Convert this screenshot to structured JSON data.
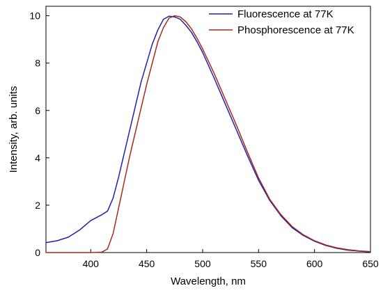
{
  "chart_data": {
    "type": "line",
    "title": "",
    "xlabel": "Wavelength, nm",
    "ylabel": "Intensity, arb. units",
    "xlim": [
      360,
      650
    ],
    "ylim": [
      0,
      10.4
    ],
    "x_ticks": [
      400,
      450,
      500,
      550,
      600,
      650
    ],
    "y_ticks": [
      0,
      2,
      4,
      6,
      8,
      10
    ],
    "grid": false,
    "legend_position": "top-right",
    "series": [
      {
        "name": "Fluorescence at 77K",
        "color": "#1f1fb4",
        "x": [
          360,
          370,
          380,
          390,
          400,
          410,
          415,
          420,
          425,
          430,
          435,
          440,
          445,
          450,
          455,
          460,
          465,
          470,
          475,
          480,
          485,
          490,
          495,
          500,
          510,
          520,
          530,
          540,
          550,
          560,
          570,
          580,
          590,
          600,
          610,
          620,
          630,
          640,
          650
        ],
        "y": [
          0.42,
          0.5,
          0.65,
          0.95,
          1.35,
          1.6,
          1.75,
          2.3,
          3.2,
          4.2,
          5.2,
          6.2,
          7.2,
          8.0,
          8.8,
          9.4,
          9.85,
          9.98,
          9.95,
          9.85,
          9.6,
          9.3,
          8.9,
          8.45,
          7.4,
          6.3,
          5.2,
          4.1,
          3.05,
          2.2,
          1.55,
          1.05,
          0.72,
          0.48,
          0.3,
          0.18,
          0.1,
          0.06,
          0.03
        ]
      },
      {
        "name": "Phosphorescence at 77K",
        "color": "#a52a1a",
        "x": [
          360,
          380,
          400,
          410,
          415,
          420,
          425,
          430,
          435,
          440,
          445,
          450,
          455,
          460,
          465,
          470,
          475,
          480,
          485,
          490,
          495,
          500,
          510,
          520,
          530,
          540,
          550,
          560,
          570,
          580,
          590,
          600,
          610,
          620,
          630,
          640,
          650
        ],
        "y": [
          0.0,
          0.0,
          0.0,
          0.02,
          0.15,
          0.8,
          1.9,
          3.0,
          4.1,
          5.1,
          6.1,
          7.1,
          8.0,
          8.9,
          9.5,
          9.9,
          10.0,
          9.95,
          9.75,
          9.45,
          9.05,
          8.6,
          7.6,
          6.5,
          5.4,
          4.25,
          3.15,
          2.25,
          1.6,
          1.1,
          0.75,
          0.5,
          0.32,
          0.2,
          0.12,
          0.07,
          0.04
        ]
      }
    ]
  }
}
